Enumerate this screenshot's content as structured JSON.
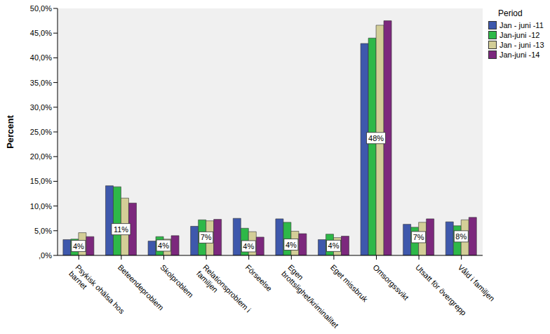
{
  "chart_data": {
    "type": "bar",
    "y_label": "Percent",
    "legend_title": "Period",
    "categories": [
      "Psykisk ohälsa hos barnet",
      "Beteendeproblem",
      "Skolproblem",
      "Relationsproblem i familjen",
      "Förseelse",
      "Egen brottslighet/kriminalitet",
      "Eget missbruk",
      "Omsorgssvikt",
      "Utsatt för övergrepp",
      "Våld i familjen"
    ],
    "series": [
      {
        "name": "Jan - juni -11",
        "color": "#3E58AC",
        "values": [
          3.2,
          14.1,
          2.9,
          5.9,
          7.5,
          7.4,
          3.2,
          42.9,
          6.3,
          6.8
        ]
      },
      {
        "name": "Jan-juni -12",
        "color": "#2EB848",
        "values": [
          3.3,
          13.9,
          3.8,
          7.2,
          5.5,
          6.7,
          4.3,
          44.0,
          5.7,
          6.0
        ]
      },
      {
        "name": "Jan - juni -13",
        "color": "#D3CE97",
        "values": [
          4.6,
          11.6,
          3.3,
          7.0,
          4.8,
          4.9,
          3.6,
          46.6,
          6.7,
          7.2
        ]
      },
      {
        "name": "Jan-juni -14",
        "color": "#7C287D",
        "values": [
          3.8,
          10.6,
          4.0,
          7.3,
          3.7,
          4.4,
          3.9,
          47.5,
          7.4,
          7.7
        ],
        "data_labels": true,
        "value_labels": [
          "4%",
          "11%",
          "4%",
          "7%",
          "4%",
          "4%",
          "4%",
          "48%",
          "7%",
          "8%"
        ]
      }
    ],
    "ylim": [
      0,
      50
    ],
    "yticks": [
      {
        "value": 0,
        "label": ",0%"
      },
      {
        "value": 5,
        "label": "5,0%"
      },
      {
        "value": 10,
        "label": "10,0%"
      },
      {
        "value": 15,
        "label": "15,0%"
      },
      {
        "value": 20,
        "label": "20,0%"
      },
      {
        "value": 25,
        "label": "25,0%"
      },
      {
        "value": 30,
        "label": "30,0%"
      },
      {
        "value": 35,
        "label": "35,0%"
      },
      {
        "value": 40,
        "label": "40,0%"
      },
      {
        "value": 45,
        "label": "45,0%"
      },
      {
        "value": 50,
        "label": "50,0%"
      }
    ],
    "grid": false,
    "legend": "right"
  }
}
